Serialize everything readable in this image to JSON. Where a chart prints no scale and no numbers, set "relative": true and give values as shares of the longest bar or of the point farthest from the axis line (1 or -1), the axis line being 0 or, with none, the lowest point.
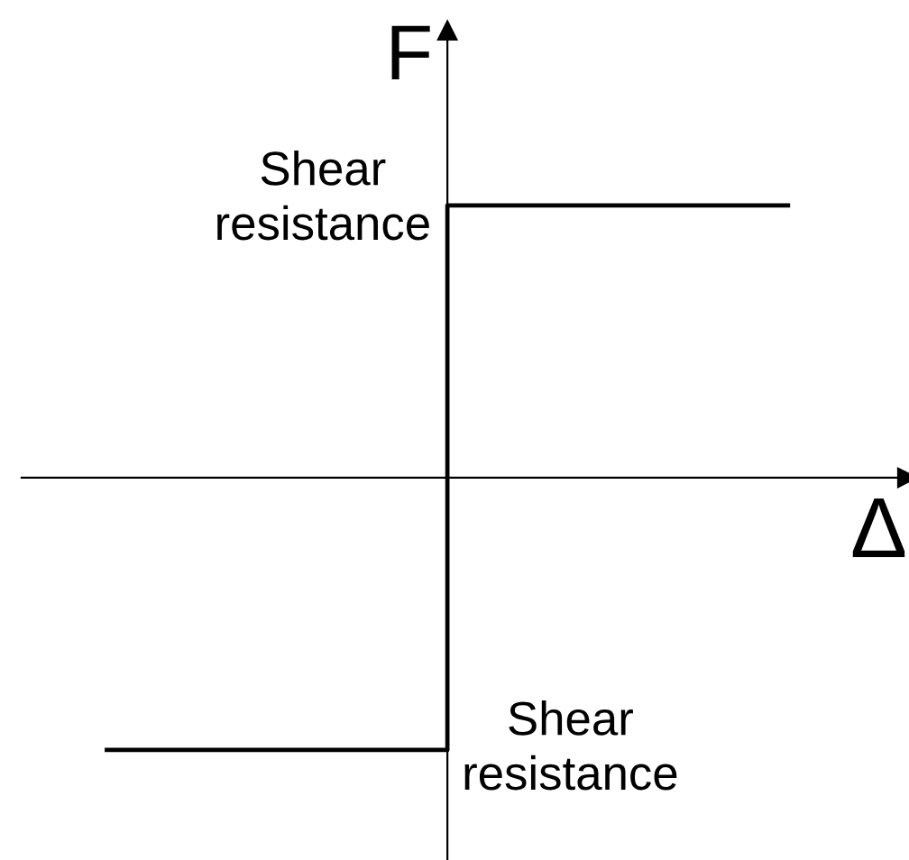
{
  "chart_data": {
    "type": "step",
    "xlabel": "Δ",
    "ylabel": "F",
    "relative": true,
    "categories": [
      null,
      null,
      null
    ],
    "values": [
      -1,
      1,
      1
    ],
    "color": "#000000",
    "annotations": [
      "Shear\nresistance",
      "Shear\nresistance"
    ]
  }
}
